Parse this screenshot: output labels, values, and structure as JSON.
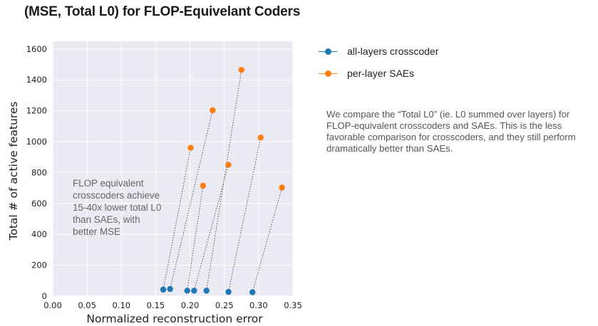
{
  "chart_data": {
    "type": "scatter",
    "title": "(MSE, Total L0) for FLOP-Equivelant Coders",
    "xlabel": "Normalized reconstruction error",
    "ylabel": "Total # of active features",
    "xlim": [
      0.0,
      0.35
    ],
    "ylim": [
      0,
      1650
    ],
    "xticks": [
      0.0,
      0.05,
      0.1,
      0.15,
      0.2,
      0.25,
      0.3,
      0.35
    ],
    "xtick_labels": [
      "0.00",
      "0.05",
      "0.10",
      "0.15",
      "0.20",
      "0.25",
      "0.30",
      "0.35"
    ],
    "yticks": [
      0,
      200,
      400,
      600,
      800,
      1000,
      1200,
      1400,
      1600
    ],
    "ytick_labels": [
      "0",
      "200",
      "400",
      "600",
      "800",
      "1000",
      "1200",
      "1400",
      "1600"
    ],
    "grid": true,
    "legend_placement": "outside-right",
    "series": [
      {
        "name": "all-layers crosscoder",
        "color": "#1f77b4",
        "x": [
          0.161,
          0.171,
          0.196,
          0.206,
          0.224,
          0.256,
          0.291
        ],
        "y": [
          42,
          46,
          35,
          35,
          35,
          27,
          25
        ]
      },
      {
        "name": "per-layer SAEs",
        "color": "#ff7f0e",
        "x": [
          0.201,
          0.233,
          0.219,
          0.275,
          0.256,
          0.303,
          0.334
        ],
        "y": [
          960,
          1203,
          715,
          1465,
          850,
          1027,
          703
        ]
      }
    ],
    "pairs": [
      [
        0,
        0
      ],
      [
        1,
        1
      ],
      [
        2,
        2
      ],
      [
        3,
        4
      ],
      [
        4,
        3
      ],
      [
        5,
        5
      ],
      [
        6,
        6
      ]
    ],
    "annotation": "FLOP equivalent crosscoders achieve 15-40x lower total L0 than SAEs, with better MSE"
  },
  "note": "We compare the “Total L0” (ie. L0 summed over layers) for FLOP-equivalent crosscoders and SAEs. This is the less favorable comparison for crosscoders, and they still perform dramatically better than SAEs.",
  "colors": {
    "plot_background": "#eaeaf2",
    "grid": "#ffffff",
    "pair_line": "#555555"
  }
}
